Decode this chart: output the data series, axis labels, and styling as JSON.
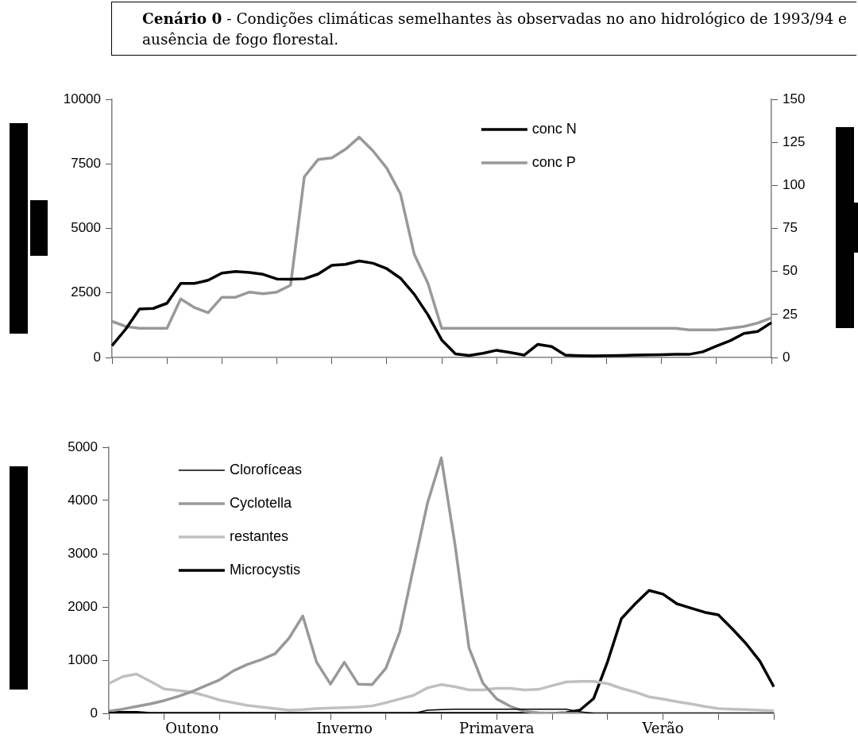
{
  "chart_data": [
    {
      "type": "line",
      "title": "Cenário 0",
      "subtitle": "- Condições climáticas semelhantes às observadas no ano hidrológico de 1993/94 e ausência de fogo florestal.",
      "categories": [
        null,
        null,
        null,
        null,
        null,
        null,
        null,
        null,
        null,
        null,
        null,
        null,
        null,
        null,
        null,
        null,
        null,
        null,
        null,
        null,
        null,
        null,
        null,
        null,
        null,
        null,
        null,
        null,
        null,
        null,
        null,
        null,
        null,
        null,
        null,
        null,
        null,
        null,
        null,
        null,
        null,
        null,
        null,
        null,
        null,
        null,
        null,
        null,
        null
      ],
      "ylim": [
        0,
        10000
      ],
      "yticks": [
        0,
        2500,
        5000,
        7500,
        10000
      ],
      "y2lim": [
        0,
        150
      ],
      "y2ticks": [
        0,
        25,
        50,
        75,
        100,
        125,
        150
      ],
      "grid": false,
      "legend": "top",
      "series": [
        {
          "name": "conc N",
          "color": "#000000",
          "values": [
            460,
            1100,
            1880,
            1900,
            2100,
            2870,
            2870,
            2990,
            3270,
            3330,
            3290,
            3220,
            3040,
            3030,
            3050,
            3230,
            3570,
            3610,
            3740,
            3650,
            3440,
            3070,
            2450,
            1650,
            680,
            140,
            80,
            160,
            280,
            190,
            90,
            510,
            420,
            90,
            70,
            60,
            70,
            80,
            90,
            100,
            110,
            120,
            120,
            220,
            440,
            650,
            930,
            1010,
            1350
          ]
        },
        {
          "name": "conc P",
          "color": "#999999",
          "axis": "y2",
          "values": [
            21,
            18,
            17,
            17,
            17,
            34,
            29,
            26,
            35,
            35,
            38,
            37,
            38,
            42,
            105,
            115,
            116,
            121,
            128,
            120,
            110,
            95,
            60,
            43,
            17,
            17,
            17,
            17,
            17,
            17,
            17,
            17,
            17,
            17,
            17,
            17,
            17,
            17,
            17,
            17,
            17,
            17,
            16,
            16,
            16,
            17,
            18,
            20,
            23
          ]
        }
      ]
    },
    {
      "type": "line",
      "categories": [
        null,
        null,
        null,
        null,
        null,
        null,
        "Outono",
        null,
        null,
        null,
        null,
        null,
        null,
        null,
        null,
        null,
        null,
        "Inverno",
        null,
        null,
        null,
        null,
        null,
        null,
        null,
        null,
        null,
        null,
        "Primavera",
        null,
        null,
        null,
        null,
        null,
        null,
        null,
        null,
        null,
        null,
        null,
        "Verão",
        null,
        null,
        null,
        null,
        null,
        null,
        null,
        null
      ],
      "ylim": [
        0,
        5000
      ],
      "yticks": [
        0,
        1000,
        2000,
        3000,
        4000,
        5000
      ],
      "grid": false,
      "legend": "top left",
      "series": [
        {
          "name": "Clorofíceas",
          "color": "#000000",
          "values": [
            20,
            20,
            20,
            0,
            0,
            0,
            0,
            0,
            0,
            0,
            0,
            0,
            0,
            0,
            0,
            0,
            0,
            0,
            0,
            0,
            0,
            0,
            0,
            60,
            70,
            80,
            80,
            80,
            80,
            80,
            80,
            80,
            80,
            80,
            30,
            0,
            0,
            0,
            0,
            0,
            0,
            0,
            0,
            0,
            0,
            0,
            0,
            0,
            0
          ]
        },
        {
          "name": "Cyclotella",
          "color": "#999999",
          "values": [
            40,
            80,
            130,
            180,
            240,
            320,
            410,
            520,
            630,
            800,
            920,
            1010,
            1120,
            1410,
            1830,
            960,
            550,
            960,
            550,
            540,
            850,
            1530,
            2750,
            3950,
            4800,
            3150,
            1230,
            570,
            270,
            130,
            40,
            10,
            0,
            0,
            0,
            0,
            0,
            0,
            0,
            0,
            0,
            0,
            0,
            0,
            0,
            0,
            0,
            0,
            0
          ]
        },
        {
          "name": "restantes",
          "color": "#c0c0c0",
          "values": [
            560,
            690,
            740,
            600,
            460,
            430,
            400,
            330,
            250,
            200,
            150,
            120,
            90,
            60,
            70,
            90,
            100,
            110,
            120,
            140,
            200,
            270,
            340,
            480,
            540,
            500,
            440,
            440,
            470,
            470,
            440,
            450,
            520,
            590,
            600,
            600,
            560,
            470,
            400,
            310,
            270,
            220,
            180,
            130,
            90,
            80,
            70,
            60,
            50
          ]
        },
        {
          "name": "Microcystis",
          "color": "#000000",
          "values": [
            20,
            20,
            20,
            0,
            0,
            0,
            0,
            0,
            0,
            0,
            0,
            0,
            0,
            0,
            0,
            0,
            0,
            0,
            0,
            0,
            0,
            0,
            0,
            0,
            0,
            0,
            0,
            0,
            0,
            0,
            0,
            0,
            0,
            10,
            60,
            280,
            970,
            1780,
            2060,
            2310,
            2240,
            2060,
            1980,
            1900,
            1850,
            1590,
            1310,
            980,
            500
          ]
        }
      ]
    }
  ]
}
